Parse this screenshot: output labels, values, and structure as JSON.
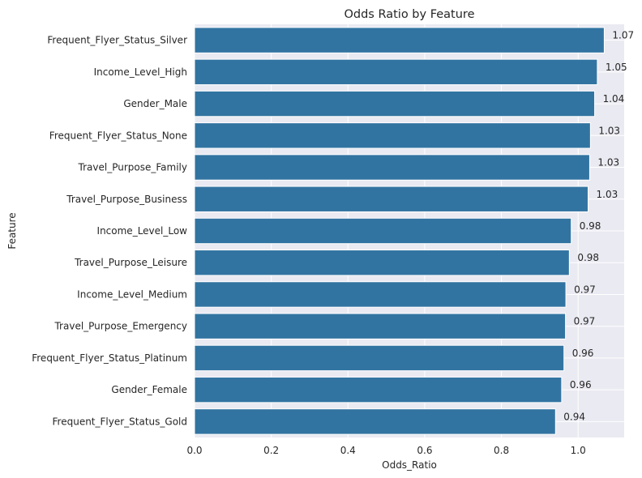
{
  "chart_data": {
    "type": "bar",
    "orientation": "horizontal",
    "title": "Odds Ratio by Feature",
    "xlabel": "Odds_Ratio",
    "ylabel": "Feature",
    "xlim": [
      0,
      1.12
    ],
    "xticks": [
      0.0,
      0.2,
      0.4,
      0.6,
      0.8,
      1.0
    ],
    "xtick_labels": [
      "0.0",
      "0.2",
      "0.4",
      "0.6",
      "0.8",
      "1.0"
    ],
    "grid": true,
    "categories": [
      "Frequent_Flyer_Status_Silver",
      "Income_Level_High",
      "Gender_Male",
      "Frequent_Flyer_Status_None",
      "Travel_Purpose_Family",
      "Travel_Purpose_Business",
      "Income_Level_Low",
      "Travel_Purpose_Leisure",
      "Income_Level_Medium",
      "Travel_Purpose_Emergency",
      "Frequent_Flyer_Status_Platinum",
      "Gender_Female",
      "Frequent_Flyer_Status_Gold"
    ],
    "values": [
      1.068,
      1.05,
      1.043,
      1.032,
      1.03,
      1.026,
      0.982,
      0.977,
      0.968,
      0.967,
      0.963,
      0.957,
      0.941
    ],
    "value_labels": [
      "1.07",
      "1.05",
      "1.04",
      "1.03",
      "1.03",
      "1.03",
      "0.98",
      "0.98",
      "0.97",
      "0.97",
      "0.96",
      "0.96",
      "0.94"
    ],
    "colors": {
      "bar": "#3274a1",
      "plot_background": "#eaeaf2",
      "grid": "#ffffff",
      "text": "#262626"
    }
  }
}
